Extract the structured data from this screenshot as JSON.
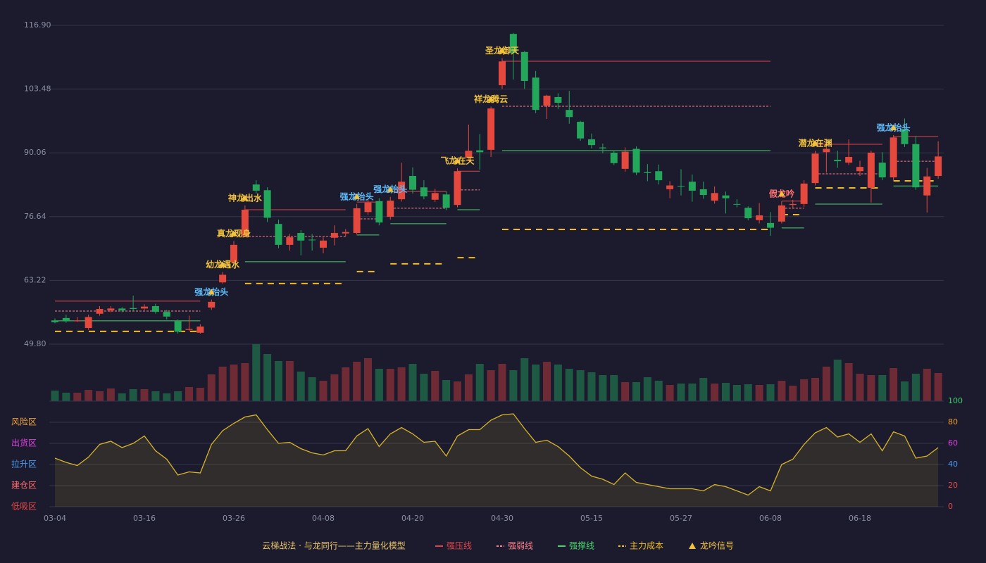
{
  "chart_data": [
    {
      "type": "candlestick",
      "categories": [
        "03-04",
        null,
        null,
        null,
        null,
        null,
        null,
        null,
        "03-16",
        null,
        null,
        null,
        null,
        null,
        null,
        null,
        "03-26",
        null,
        null,
        null,
        null,
        null,
        null,
        null,
        "04-08",
        null,
        null,
        null,
        null,
        null,
        null,
        null,
        "04-20",
        null,
        null,
        null,
        null,
        null,
        null,
        null,
        "04-30",
        null,
        null,
        null,
        null,
        null,
        null,
        null,
        "05-15",
        null,
        null,
        null,
        null,
        null,
        null,
        null,
        "05-27",
        null,
        null,
        null,
        null,
        null,
        null,
        null,
        "06-08",
        null,
        null,
        null,
        null,
        null,
        null,
        null,
        "06-18",
        null,
        null,
        null,
        null,
        null,
        null,
        null
      ],
      "open": [
        54.8,
        55.3,
        54.6,
        53.2,
        56.2,
        56.9,
        57.3,
        57.4,
        57.3,
        57.8,
        56.6,
        54.6,
        52.8,
        52.2,
        57.5,
        62.8,
        67.1,
        72.6,
        83.4,
        82.2,
        75.1,
        70.7,
        73.2,
        71.8,
        70.1,
        72.2,
        73.1,
        73.2,
        77.6,
        79.9,
        76.6,
        80.3,
        85.2,
        82.8,
        80.2,
        81.3,
        79.1,
        89.1,
        90.6,
        90.7,
        104.3,
        115.1,
        111.3,
        105.9,
        100,
        101.8,
        99.1,
        96.6,
        92.9,
        91.2,
        90.1,
        86.7,
        90.9,
        86,
        86.2,
        82.4,
        83.1,
        84,
        82.4,
        80,
        81.1,
        79.3,
        78.5,
        75.9,
        75.3,
        75.6,
        79.1,
        79.3,
        83.7,
        90.2,
        88.6,
        88,
        86.2,
        82.7,
        88,
        84.9,
        95.1,
        91.9,
        81.1,
        85.2
      ],
      "high": [
        55.2,
        56,
        55.5,
        56,
        57.8,
        57.8,
        57.6,
        60,
        58.2,
        58.3,
        57,
        55,
        55.8,
        54,
        59.2,
        65,
        71.5,
        79,
        84.3,
        82.8,
        76,
        73,
        73.8,
        73,
        72.3,
        74.8,
        74,
        79.3,
        80.2,
        80.5,
        80.8,
        88,
        87,
        84.3,
        82.5,
        82,
        86.8,
        96,
        94,
        99.8,
        110,
        115.3,
        111.5,
        107.3,
        102.3,
        102.6,
        103.1,
        96.8,
        94.1,
        92,
        90.6,
        91.2,
        91.4,
        87.7,
        87.6,
        84.1,
        86.6,
        85.5,
        84,
        83,
        81.9,
        80.3,
        78.8,
        79.5,
        77.6,
        79.9,
        80.2,
        84.3,
        90.5,
        92.4,
        90.5,
        92.9,
        88.4,
        90.5,
        90.2,
        93.8,
        97.3,
        93.6,
        86.9,
        92.5
      ],
      "low": [
        54.2,
        54.3,
        54.5,
        52.8,
        55.8,
        56.5,
        56.5,
        56.8,
        57,
        56.2,
        55,
        52,
        52.5,
        52,
        57,
        62.5,
        66.8,
        72.3,
        81.5,
        75.5,
        70,
        69.5,
        68.5,
        69.5,
        68.9,
        70.6,
        72.5,
        72.9,
        77,
        74.8,
        76,
        79.8,
        81.5,
        80.3,
        79.7,
        78,
        78.6,
        88.3,
        86.5,
        89.2,
        103.5,
        105.5,
        103.5,
        98.4,
        97.2,
        99.3,
        96.2,
        92.6,
        91,
        90,
        87.5,
        86.1,
        85.4,
        84.1,
        83.4,
        80.5,
        81.1,
        79.8,
        80.4,
        79.4,
        77.3,
        78.6,
        75.9,
        75.2,
        72.6,
        75.2,
        78.5,
        78.7,
        83.2,
        85.9,
        86.9,
        87.5,
        85.2,
        79.6,
        84.3,
        84.3,
        91.3,
        82.3,
        77.5,
        84.6
      ],
      "close": [
        54.4,
        54.6,
        54.8,
        55.5,
        57.2,
        57.3,
        56.9,
        57.2,
        57.7,
        56.6,
        55.6,
        52.4,
        53,
        53.5,
        58.7,
        64.4,
        70.7,
        78.1,
        82.1,
        76.4,
        70.7,
        72.3,
        71.6,
        71.7,
        71.6,
        73.2,
        73.4,
        78.4,
        79.6,
        75.4,
        80,
        84,
        82.3,
        80.9,
        81.6,
        78.5,
        86.2,
        90.5,
        90.2,
        99.4,
        109.3,
        111.1,
        105.2,
        99.1,
        102.1,
        100.6,
        97.6,
        93.1,
        91.7,
        91,
        87.9,
        90.3,
        85.9,
        85.8,
        84.3,
        83.2,
        83,
        82.1,
        81.2,
        81.6,
        80.5,
        79.2,
        76.3,
        76.9,
        74.3,
        79,
        79.3,
        83.6,
        89.9,
        90.9,
        88.3,
        89.2,
        87.1,
        90.1,
        84.9,
        93.3,
        91.9,
        82.8,
        85.1,
        89.3
      ],
      "up_color": "#e5483d",
      "down_color": "#22a75b",
      "ylim": [
        49.8,
        116.9
      ],
      "yticks": [
        {
          "value": 49.8,
          "label": "49.80"
        },
        63.22,
        76.64,
        90.06,
        103.48,
        {
          "value": 116.9,
          "label": "116.90"
        }
      ],
      "grid": true,
      "levels": [
        {
          "name": "强压线",
          "color": "#e0434b",
          "dashed": false,
          "values": [
            58.85,
            58.85,
            58.85,
            58.85,
            58.85,
            58.85,
            58.85,
            58.85,
            58.85,
            58.85,
            58.85,
            58.85,
            58.85,
            58.85,
            null,
            null,
            null,
            78.1,
            78.1,
            78.1,
            78.1,
            78.1,
            78.1,
            78.1,
            78.1,
            78.1,
            78.1,
            79.7,
            79.7,
            79.7,
            81.95,
            81.95,
            81.95,
            81.95,
            81.95,
            81.95,
            86.2,
            86.2,
            86.2,
            null,
            109.35,
            109.35,
            109.35,
            109.35,
            109.35,
            109.35,
            109.35,
            109.35,
            109.35,
            109.35,
            109.35,
            109.35,
            109.35,
            109.35,
            109.35,
            109.35,
            109.35,
            109.35,
            109.35,
            109.35,
            109.35,
            109.35,
            109.35,
            109.35,
            109.35,
            79.9,
            79.9,
            79.9,
            91.87,
            91.87,
            91.87,
            91.87,
            91.87,
            91.87,
            91.87,
            93.5,
            93.5,
            93.5,
            93.5,
            93.5
          ]
        },
        {
          "name": "强弱线",
          "color": "#ff7f8a",
          "dashed": true,
          "values": [
            56.77,
            56.77,
            56.77,
            56.77,
            56.77,
            56.77,
            56.77,
            56.77,
            56.77,
            56.77,
            56.77,
            56.77,
            56.77,
            56.77,
            null,
            null,
            null,
            72.47,
            72.47,
            72.47,
            72.47,
            72.47,
            72.47,
            72.47,
            72.47,
            72.47,
            72.47,
            76.17,
            76.17,
            76.17,
            78.4,
            78.4,
            78.4,
            78.4,
            78.4,
            78.4,
            82.25,
            82.25,
            82.25,
            null,
            99.87,
            99.87,
            99.87,
            99.87,
            99.87,
            99.87,
            99.87,
            99.87,
            99.87,
            99.87,
            99.87,
            99.87,
            99.87,
            99.87,
            99.87,
            99.87,
            99.87,
            99.87,
            99.87,
            99.87,
            99.87,
            99.87,
            99.87,
            99.87,
            99.87,
            78.4,
            78.4,
            78.4,
            85.65,
            85.65,
            85.65,
            85.65,
            85.65,
            85.65,
            85.65,
            88.3,
            88.3,
            88.3,
            88.3,
            88.3
          ]
        },
        {
          "name": "强撑线",
          "color": "#46d46a",
          "dashed": false,
          "values": [
            54.7,
            54.7,
            54.7,
            54.7,
            54.7,
            54.7,
            54.7,
            54.7,
            54.7,
            54.7,
            54.7,
            54.7,
            54.7,
            54.7,
            null,
            null,
            null,
            67.14,
            67.14,
            67.14,
            67.14,
            67.14,
            67.14,
            67.14,
            67.14,
            67.14,
            67.14,
            72.77,
            72.77,
            72.77,
            75.14,
            75.14,
            75.14,
            75.14,
            75.14,
            75.14,
            78.1,
            78.1,
            78.1,
            null,
            90.54,
            90.54,
            90.54,
            90.54,
            90.54,
            90.54,
            90.54,
            90.54,
            90.54,
            90.54,
            90.54,
            90.54,
            90.54,
            90.54,
            90.54,
            90.54,
            90.54,
            90.54,
            90.54,
            90.54,
            90.54,
            90.54,
            90.54,
            90.54,
            90.54,
            74.25,
            74.25,
            74.25,
            79.28,
            79.28,
            79.28,
            79.28,
            79.28,
            79.28,
            79.28,
            83.1,
            83.1,
            83.1,
            83.1,
            83.1
          ]
        },
        {
          "name": "主力成本",
          "color": "#f0bd24",
          "dashed": true,
          "values": [
            52.48,
            52.48,
            52.48,
            52.48,
            52.48,
            52.48,
            52.48,
            52.48,
            52.48,
            52.48,
            52.48,
            52.48,
            52.48,
            52.48,
            null,
            null,
            null,
            62.55,
            62.55,
            62.55,
            62.55,
            62.55,
            62.55,
            62.55,
            62.55,
            62.55,
            62.55,
            65.07,
            65.07,
            65.07,
            66.7,
            66.7,
            66.7,
            66.7,
            66.7,
            66.7,
            68.0,
            68.0,
            68.0,
            null,
            73.95,
            73.95,
            73.95,
            73.95,
            73.95,
            73.95,
            73.95,
            73.95,
            73.95,
            73.95,
            73.95,
            73.95,
            73.95,
            73.95,
            73.95,
            73.95,
            73.95,
            73.95,
            73.95,
            73.95,
            73.95,
            73.95,
            73.95,
            73.95,
            73.95,
            77.06,
            77.06,
            77.06,
            82.69,
            82.69,
            82.69,
            82.69,
            82.69,
            82.69,
            82.69,
            84.17,
            84.17,
            84.17,
            84.17,
            84.17
          ]
        }
      ],
      "signals": {
        "name": "龙吟信号",
        "color": "#f2c23c",
        "labels": [
          null,
          null,
          null,
          null,
          null,
          null,
          null,
          null,
          null,
          null,
          null,
          null,
          null,
          null,
          {
            "text": "强龙抬头",
            "color": "#5cb8f6"
          },
          {
            "text": "幼龙遇水",
            "color": "#f2c23c"
          },
          {
            "text": "真龙现身",
            "color": "#f2c23c"
          },
          {
            "text": "神龙出水",
            "color": "#f2c23c"
          },
          null,
          null,
          null,
          null,
          null,
          null,
          null,
          null,
          null,
          {
            "text": "强龙抬头",
            "color": "#5cb8f6"
          },
          null,
          null,
          {
            "text": "强龙抬头",
            "color": "#5cb8f6"
          },
          null,
          null,
          null,
          null,
          null,
          {
            "text": "飞龙在天",
            "color": "#f2c23c"
          },
          null,
          null,
          {
            "text": "祥龙腾云",
            "color": "#f2c23c"
          },
          {
            "text": "圣龙御天",
            "color": "#f2c23c"
          },
          null,
          null,
          null,
          null,
          null,
          null,
          null,
          null,
          null,
          null,
          null,
          null,
          null,
          null,
          null,
          null,
          null,
          null,
          null,
          null,
          null,
          null,
          null,
          null,
          {
            "text": "假龙吟",
            "color": "#ff6f6f"
          },
          null,
          null,
          {
            "text": "潜龙在渊",
            "color": "#f2c23c"
          },
          null,
          null,
          null,
          null,
          null,
          null,
          {
            "text": "强龙抬头",
            "color": "#5cb8f6"
          },
          null,
          null,
          null,
          null
        ]
      }
    },
    {
      "type": "bar",
      "values": [
        15,
        12,
        12,
        16,
        14,
        18,
        11,
        17,
        17,
        14,
        11,
        14,
        20,
        19,
        38,
        49,
        52,
        54,
        81,
        67,
        57,
        57,
        42,
        34,
        29,
        38,
        48,
        56,
        61,
        46,
        46,
        48,
        53,
        39,
        43,
        30,
        28,
        38,
        53,
        44,
        53,
        44,
        61,
        52,
        56,
        52,
        46,
        44,
        41,
        37,
        37,
        27,
        27,
        34,
        29,
        23,
        25,
        25,
        33,
        25,
        26,
        23,
        24,
        23,
        24,
        29,
        22,
        31,
        33,
        49,
        59,
        54,
        39,
        37,
        37,
        47,
        28,
        39,
        46,
        40
      ],
      "up_color": "#6e2b35",
      "down_color": "#1e5943"
    },
    {
      "type": "line",
      "values": [
        46,
        42,
        39,
        47,
        59,
        62,
        56,
        60,
        67,
        53,
        45,
        30,
        33,
        32,
        59,
        72,
        79,
        85,
        87,
        73,
        60,
        61,
        55,
        51,
        49,
        53,
        53,
        67,
        74,
        57,
        69,
        75,
        69,
        61,
        62,
        48,
        67,
        73,
        73,
        82,
        87,
        88,
        74,
        61,
        63,
        57,
        48,
        37,
        29,
        26,
        21,
        32,
        23,
        21,
        19,
        17,
        17,
        17,
        15,
        21,
        19,
        15,
        11,
        19,
        15,
        40,
        45,
        59,
        70,
        75,
        66,
        69,
        61,
        69,
        53,
        71,
        67,
        46,
        48,
        56
      ],
      "color": "#d6b42a",
      "fill": "rgba(214,180,42,0.12)",
      "ylim": [
        0,
        100
      ],
      "yticks": [
        0,
        20,
        40,
        60,
        80,
        100
      ],
      "ytick_colors": [
        "#e84a4a",
        "#e84a4a",
        "#4d9bf0",
        "#e040e0",
        "#f0a030",
        "#3fd06a"
      ],
      "grid": true,
      "zones": [
        {
          "label": "风险区",
          "value": 80,
          "color": "#f0a030"
        },
        {
          "label": "出货区",
          "value": 60,
          "color": "#e040e0"
        },
        {
          "label": "拉升区",
          "value": 40,
          "color": "#4d9bf0"
        },
        {
          "label": "建仓区",
          "value": 20,
          "color": "#ff6b6b"
        },
        {
          "label": "低吸区",
          "value": 0,
          "color": "#e84a4a"
        }
      ]
    }
  ],
  "legend_title": "云梯战法 · 与龙同行——主力量化模型",
  "legend_title_color": "#e6c36a"
}
